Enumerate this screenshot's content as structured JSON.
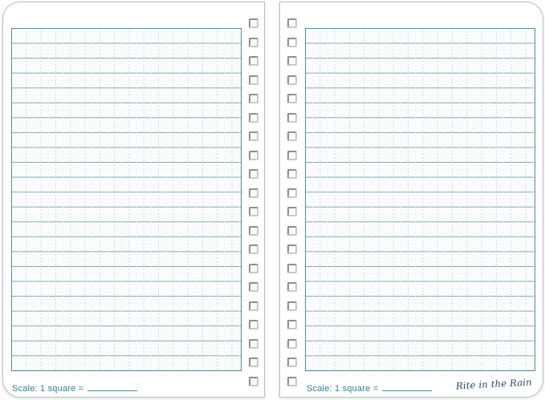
{
  "notebook": {
    "pages": [
      {
        "side": "left",
        "scale_label": "Scale: 1 square ="
      },
      {
        "side": "right",
        "scale_label": "Scale: 1 square =",
        "signature": "Rite in the Rain"
      }
    ],
    "binding": {
      "holes_per_page": 20
    },
    "colors": {
      "rule_teal": "#7da6b1",
      "grid_border": "#518b9c",
      "dot_teal": "#a4c3cb",
      "faint_dot": "#d8e4e7",
      "scale_text": "#2e7e96",
      "signature_ink": "#27466a"
    }
  }
}
